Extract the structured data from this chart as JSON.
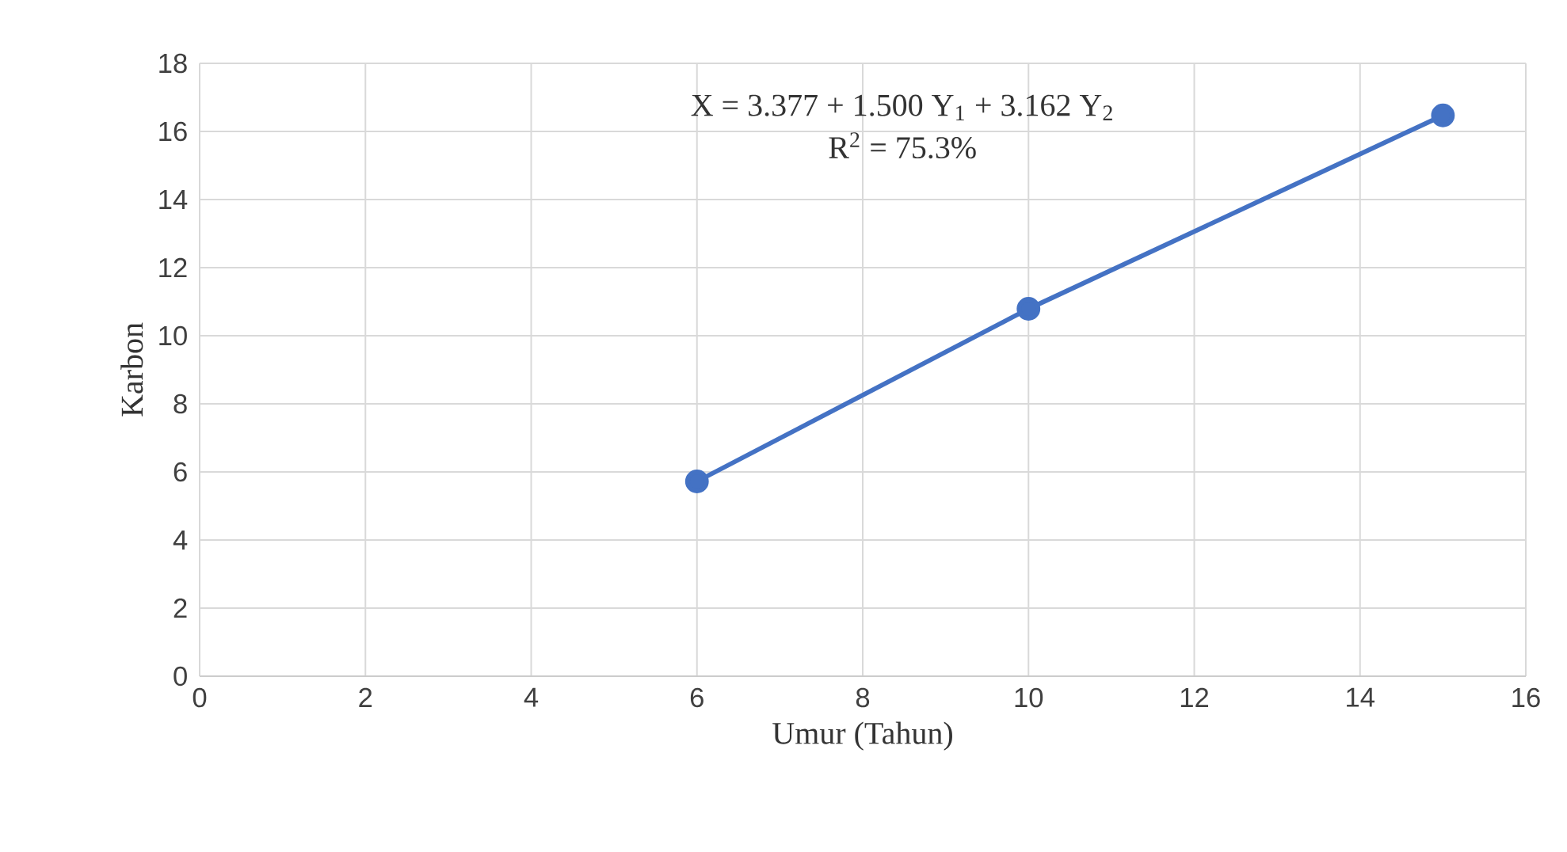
{
  "chart_data": {
    "type": "line",
    "xlabel": "Umur (Tahun)",
    "ylabel": "Karbon",
    "annotations": [
      "X = 3.377 + 1.500 Y$_{1}$ + 3.162 Y$_{2}$",
      "R$^{2}$ = 75.3%"
    ],
    "series": [
      {
        "color": "#4472c4",
        "x": [
          6,
          10,
          15
        ],
        "values": [
          5.72,
          10.79,
          16.47
        ]
      }
    ],
    "xlim": [
      0,
      16
    ],
    "ylim": [
      0,
      18
    ],
    "xticks": [
      0,
      2,
      4,
      6,
      8,
      10,
      12,
      14,
      16
    ],
    "yticks": [
      0,
      2,
      4,
      6,
      8,
      10,
      12,
      14,
      16,
      18
    ],
    "grid": true,
    "marker": "circle",
    "line_style": "solid"
  }
}
